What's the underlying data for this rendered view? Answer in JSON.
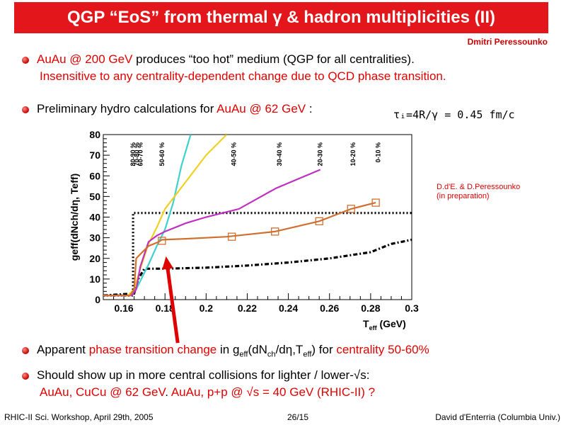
{
  "slide": {
    "title": "QGP “EoS” from thermal γ & hadron multiplicities (II)",
    "author": "Dmitri Peressounko",
    "bullet1_a": "AuAu @ 200 GeV",
    "bullet1_b": " produces “too hot” medium (QGP for all centralities).",
    "bullet1_c": "Insensitive to any centrality-dependent change due to QCD phase transition.",
    "bullet2_a": "Preliminary hydro calculations for ",
    "bullet2_b": "AuAu @ 62 GeV",
    "bullet2_c": " :",
    "tau_annotation": "τᵢ=4R/γ = 0.45 fm/c",
    "reference_line1": "D.d'E. & D.Peressounko",
    "reference_line2": "(in preparation)",
    "bullet3_a": "Apparent ",
    "bullet3_b": "phase transition change",
    "bullet3_c": " in g",
    "bullet3_d": "eff",
    "bullet3_e": "(dN",
    "bullet3_f": "ch",
    "bullet3_g": "/dη,T",
    "bullet3_h": "eff",
    "bullet3_i": ") for ",
    "bullet3_j": "centrality 50-60%",
    "bullet4_line1": "Should show up in more central collisions for lighter / lower-√s:",
    "bullet4_a": "AuAu, CuCu @ 62 GeV",
    "bullet4_b": ". ",
    "bullet4_c": "AuAu, p+p @ √s = 40 GeV (RHIC-II) ?",
    "footer_left": "RHIC-II Sci. Workshop, April 29th, 2005",
    "footer_center": "26/15",
    "footer_right": "David d'Enterria (Columbia Univ.)"
  },
  "colors": {
    "title_bg": "#e3161b",
    "accent_red": "#e00000"
  },
  "chart_data": {
    "type": "line",
    "xlabel": "T_eff (GeV)",
    "ylabel": "g_eff(dN_ch/dη, T_eff)",
    "xlim": [
      0.15,
      0.3
    ],
    "ylim": [
      0,
      80
    ],
    "xticks": [
      "0.16",
      "0.18",
      "0.2",
      "0.22",
      "0.24",
      "0.26",
      "0.28",
      "0.3"
    ],
    "yticks": [
      "0",
      "10",
      "20",
      "30",
      "40",
      "50",
      "60",
      "70",
      "80"
    ],
    "centrality_labels": [
      {
        "text": "80-90 %",
        "x": 0.1645
      },
      {
        "text": "70-80 %",
        "x": 0.1663
      },
      {
        "text": "60-70 %",
        "x": 0.1681
      },
      {
        "text": "50-60 %",
        "x": 0.1785
      },
      {
        "text": "40-50 %",
        "x": 0.2135
      },
      {
        "text": "30-40 %",
        "x": 0.2357
      },
      {
        "text": "20-30 %",
        "x": 0.2555
      },
      {
        "text": "10-20 %",
        "x": 0.2715
      },
      {
        "text": "0-10 %",
        "x": 0.2837
      }
    ],
    "series": [
      {
        "color": "#000000",
        "style": "dotted",
        "x": [
          0.15,
          0.163,
          0.1645,
          0.1645,
          0.18,
          0.2,
          0.22,
          0.24,
          0.26,
          0.28,
          0.3
        ],
        "y": [
          2,
          2,
          2,
          42,
          42,
          42,
          42,
          42,
          42,
          42,
          42
        ]
      },
      {
        "color": "#000000",
        "style": "dashdot",
        "x": [
          0.15,
          0.165,
          0.167,
          0.17,
          0.18,
          0.2,
          0.22,
          0.24,
          0.26,
          0.28,
          0.29,
          0.3
        ],
        "y": [
          2,
          3,
          10,
          15,
          15,
          15.5,
          16.5,
          18,
          20,
          23,
          27,
          29
        ]
      },
      {
        "color": "#40d0d0",
        "style": "solid",
        "x": [
          0.15,
          0.163,
          0.166,
          0.168,
          0.172,
          0.176,
          0.18,
          0.184,
          0.188,
          0.1925
        ],
        "y": [
          2,
          2,
          5,
          9,
          17,
          26,
          34,
          47,
          65,
          80
        ]
      },
      {
        "color": "#f0d020",
        "style": "solid",
        "x": [
          0.15,
          0.162,
          0.165,
          0.168,
          0.172,
          0.176,
          0.18,
          0.19,
          0.2,
          0.21
        ],
        "y": [
          2,
          2,
          5,
          15,
          27,
          35,
          44,
          57,
          70,
          80
        ]
      },
      {
        "color": "#c030c0",
        "style": "solid",
        "x": [
          0.15,
          0.164,
          0.166,
          0.168,
          0.172,
          0.176,
          0.18,
          0.19,
          0.2,
          0.216,
          0.234,
          0.2555
        ],
        "y": [
          2,
          2,
          5,
          16,
          28,
          31,
          33,
          37,
          40,
          44,
          54,
          63
        ]
      },
      {
        "color": "#d07030",
        "style": "solid",
        "x": [
          0.15,
          0.163,
          0.165,
          0.166,
          0.168,
          0.172,
          0.177,
          0.1785,
          0.19,
          0.21,
          0.2335,
          0.255,
          0.2705,
          0.2825
        ],
        "y": [
          2,
          2,
          5,
          20,
          22,
          26,
          28,
          29,
          29.5,
          30.5,
          33,
          38,
          44,
          47
        ]
      }
    ],
    "markers": {
      "color": "#d07030",
      "shape": "open-square",
      "x": [
        0.1785,
        0.2125,
        0.2335,
        0.255,
        0.2705,
        0.2825
      ],
      "y": [
        28.5,
        30.5,
        33,
        38,
        44,
        47
      ]
    },
    "arrow": {
      "color": "#e00000",
      "from": [
        0.1862,
        -21
      ],
      "to": [
        0.1805,
        21
      ]
    }
  }
}
